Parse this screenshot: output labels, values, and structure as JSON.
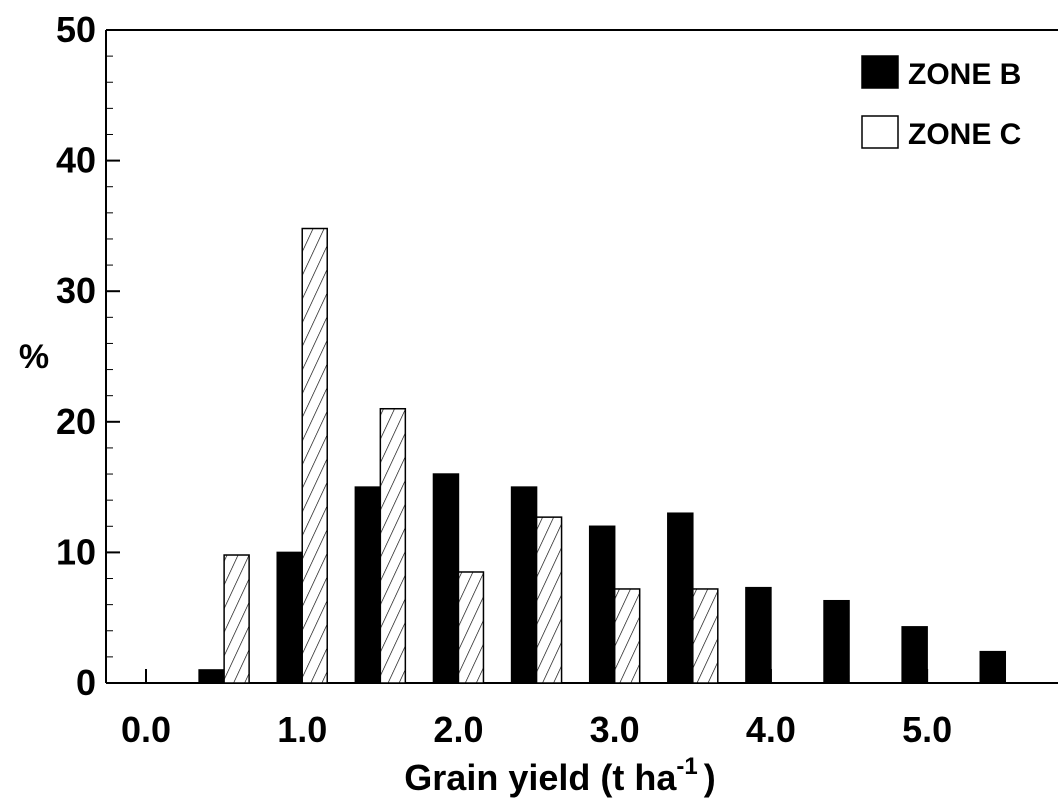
{
  "chart_data": {
    "type": "bar",
    "title": "",
    "xlabel": "Grain yield (t ha",
    "xlabel_superscript": "-1",
    "xlabel_close": ")",
    "ylabel": "%",
    "ylim": [
      0,
      50
    ],
    "xlim": [
      0,
      5.75
    ],
    "x_ticks": [
      0.0,
      1.0,
      2.0,
      3.0,
      4.0,
      5.0
    ],
    "x_tick_labels": [
      "0.0",
      "1.0",
      "2.0",
      "3.0",
      "4.0",
      "5.0"
    ],
    "y_ticks": [
      0,
      10,
      20,
      30,
      40,
      50
    ],
    "y_tick_labels": [
      "0",
      "10",
      "20",
      "30",
      "40",
      "50"
    ],
    "x": [
      0.5,
      1.0,
      1.5,
      2.0,
      2.5,
      3.0,
      3.5,
      4.0,
      4.5,
      5.0,
      5.5
    ],
    "series": [
      {
        "name": "ZONE B",
        "fill": "solid",
        "color": "#000000",
        "values": [
          1,
          10,
          15,
          16,
          15,
          12,
          13,
          7.3,
          6.3,
          4.3,
          2.4
        ]
      },
      {
        "name": "ZONE C",
        "fill": "hatched",
        "color": "#ffffff",
        "values": [
          9.8,
          34.8,
          21,
          8.5,
          12.7,
          7.2,
          7.2,
          0,
          0,
          0,
          0
        ]
      }
    ],
    "legend_position": "top-right",
    "grid": false
  }
}
